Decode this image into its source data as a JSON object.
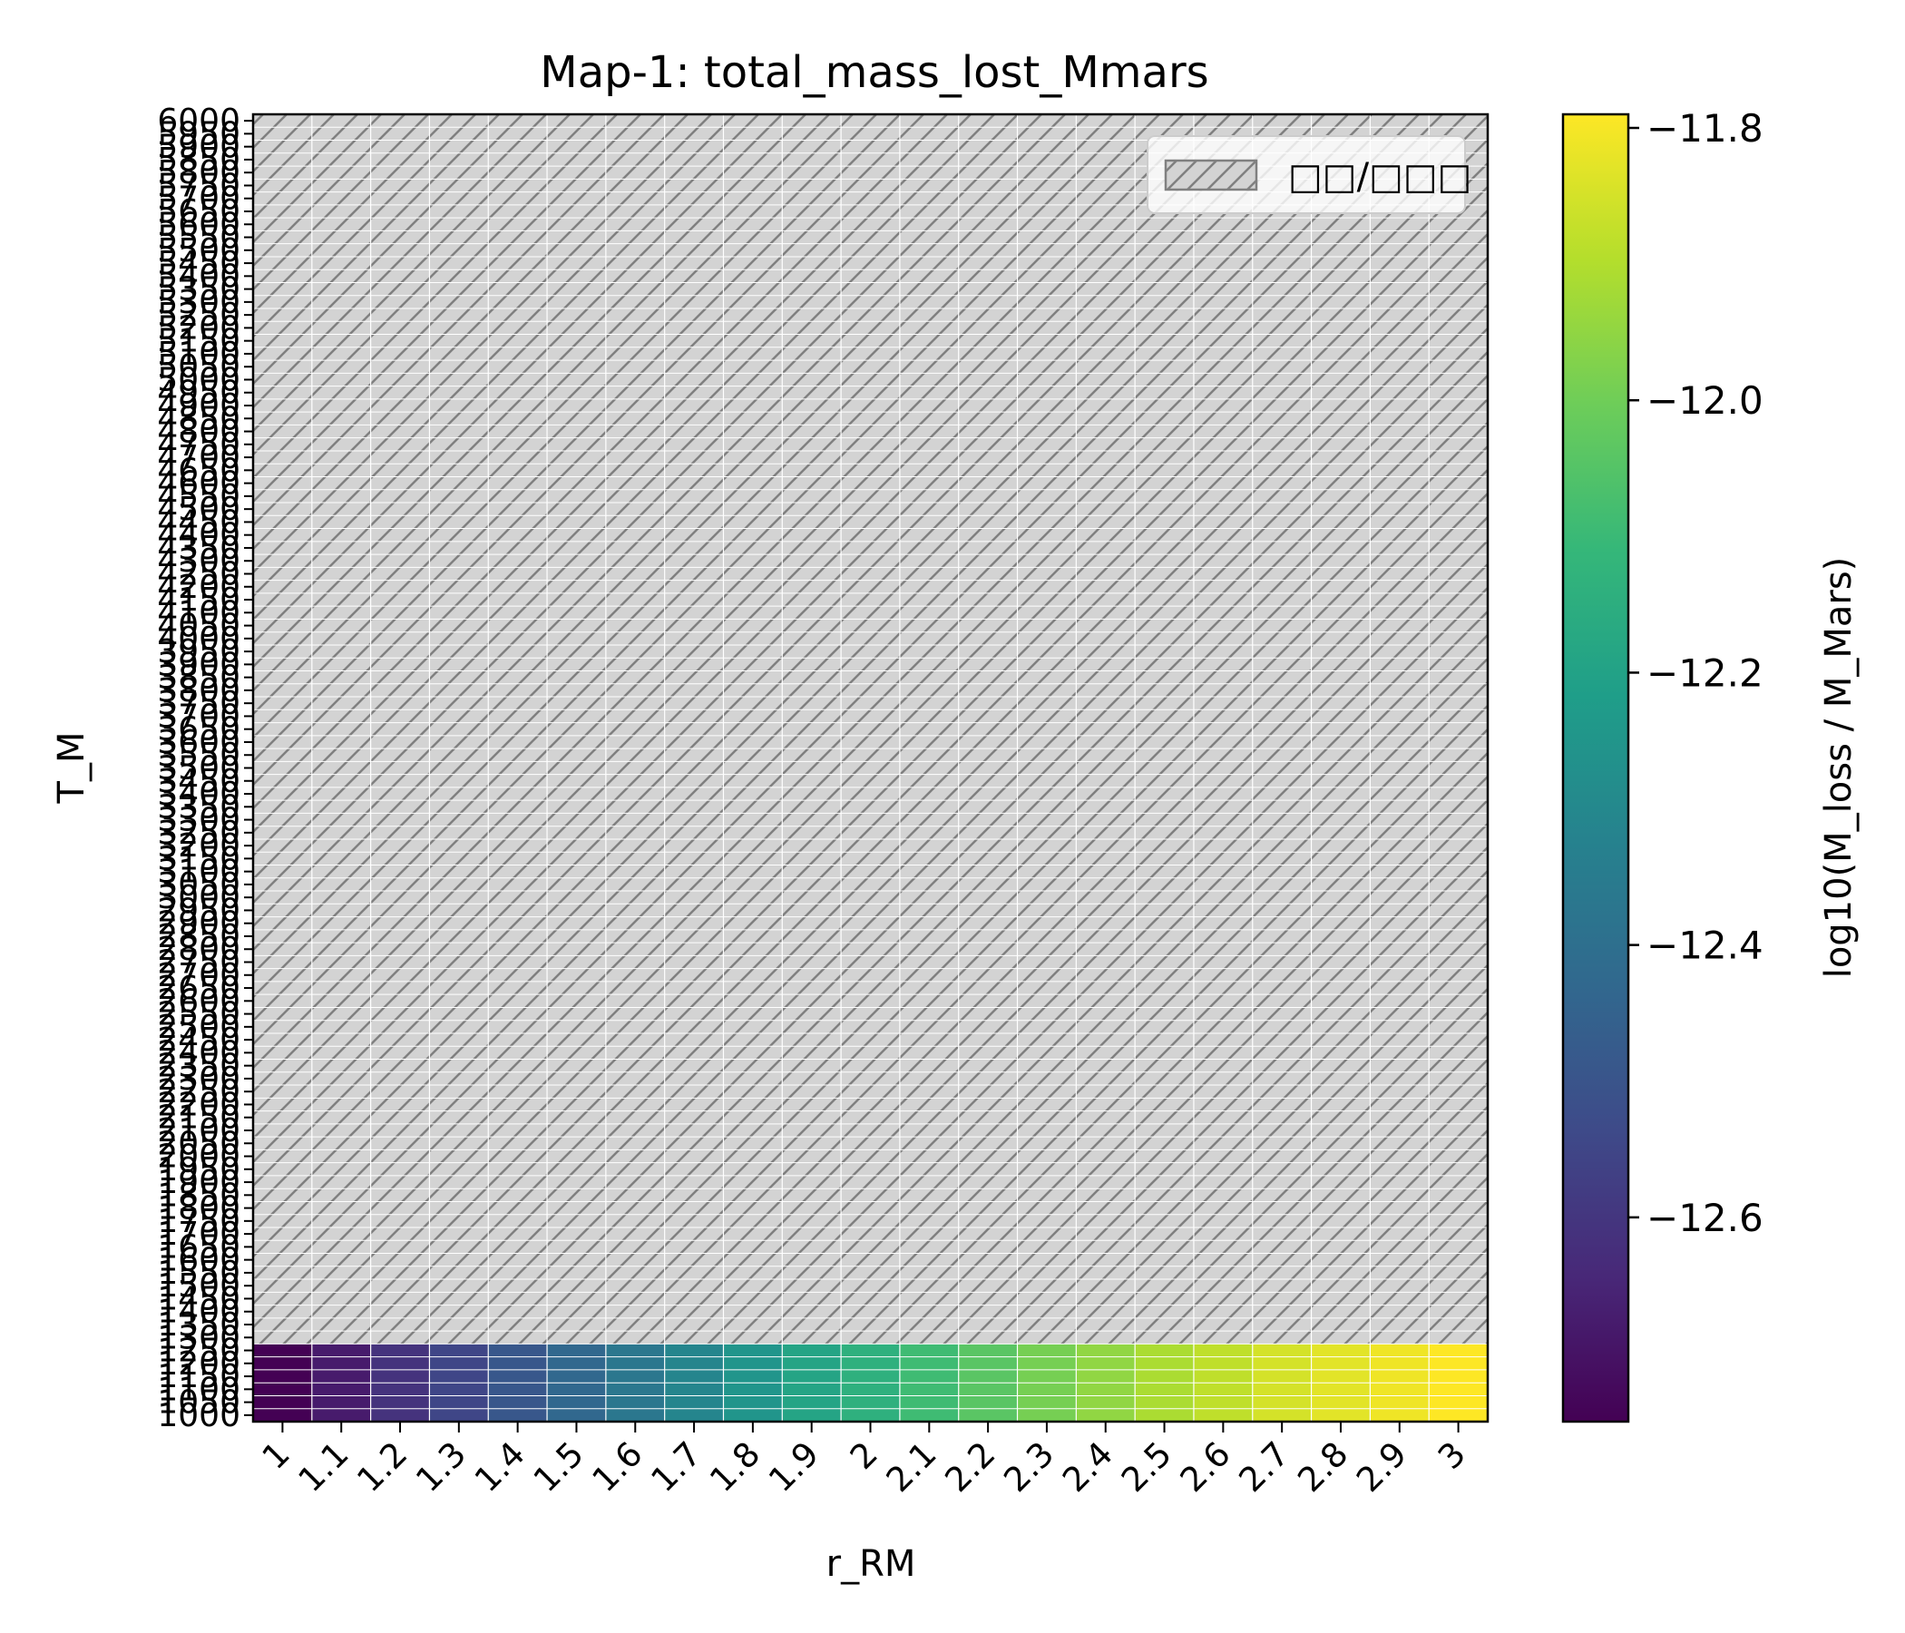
{
  "chart_data": {
    "type": "heatmap",
    "title": "Map-1: total_mass_lost_Mmars",
    "xlabel": "r_RM",
    "ylabel": "T_M",
    "x_ticks": [
      "1",
      "1.1",
      "1.2",
      "1.3",
      "1.4",
      "1.5",
      "1.6",
      "1.7",
      "1.8",
      "1.9",
      "2",
      "2.1",
      "2.2",
      "2.3",
      "2.4",
      "2.5",
      "2.6",
      "2.7",
      "2.8",
      "2.9",
      "3"
    ],
    "y_ticks": [
      1000,
      1050,
      1100,
      1150,
      1200,
      1250,
      1300,
      1350,
      1400,
      1450,
      1500,
      1550,
      1600,
      1650,
      1700,
      1750,
      1800,
      1850,
      1900,
      1950,
      2000,
      2050,
      2100,
      2150,
      2200,
      2250,
      2300,
      2350,
      2400,
      2450,
      2500,
      2550,
      2600,
      2650,
      2700,
      2750,
      2800,
      2850,
      2900,
      2950,
      3000,
      3050,
      3100,
      3150,
      3200,
      3250,
      3300,
      3350,
      3400,
      3450,
      3500,
      3550,
      3600,
      3650,
      3700,
      3750,
      3800,
      3850,
      3900,
      3950,
      4000,
      4050,
      4100,
      4150,
      4200,
      4250,
      4300,
      4350,
      4400,
      4450,
      4500,
      4550,
      4600,
      4650,
      4700,
      4750,
      4800,
      4850,
      4900,
      4950,
      5000,
      5050,
      5100,
      5150,
      5200,
      5250,
      5300,
      5350,
      5400,
      5450,
      5500,
      5550,
      5600,
      5650,
      5700,
      5750,
      5800,
      5850,
      5900,
      5950,
      6000
    ],
    "valid_y_values": [
      1000,
      1050,
      1100,
      1150,
      1200,
      1250
    ],
    "values_by_x": [
      -12.75,
      -12.68,
      -12.61,
      -12.55,
      -12.49,
      -12.43,
      -12.37,
      -12.31,
      -12.25,
      -12.19,
      -12.14,
      -12.09,
      -12.04,
      -11.99,
      -11.95,
      -11.91,
      -11.88,
      -11.85,
      -11.83,
      -11.81,
      -11.79
    ],
    "invalid_region": "T_M >= 1300 (hatched)",
    "colormap": "viridis",
    "colorbar": {
      "label": "log10(M_loss / M_Mars)",
      "range": [
        -12.75,
        -11.79
      ],
      "ticks": [
        "−11.8",
        "−12.0",
        "−12.2",
        "−12.4",
        "−12.6"
      ],
      "tick_values": [
        -11.8,
        -12.0,
        -12.2,
        -12.4,
        -12.6
      ]
    },
    "legend": {
      "placement": "top-right",
      "entries": [
        {
          "label": "□□/□□□",
          "style": "hatched-gray"
        }
      ]
    },
    "grid": false
  }
}
